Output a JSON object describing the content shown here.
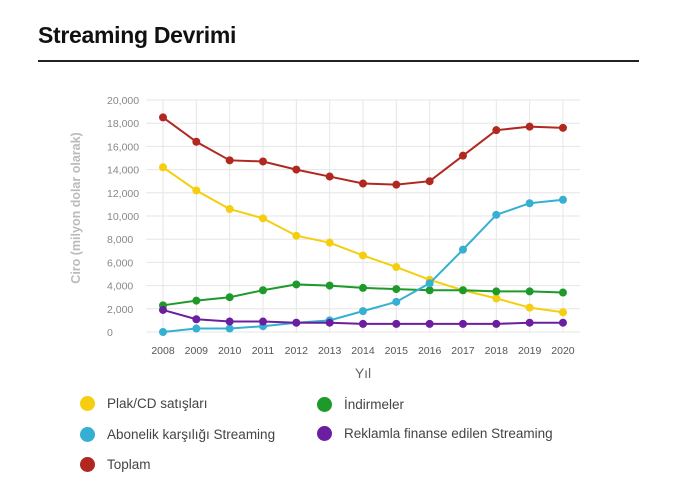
{
  "header": {
    "title": "Streaming Devrimi"
  },
  "chart_data": {
    "type": "line",
    "title": "Streaming Devrimi",
    "xlabel": "Yıl",
    "ylabel": "Ciro (milyon dolar olarak)",
    "ylim": [
      0,
      20000
    ],
    "yticks": [
      0,
      2000,
      4000,
      6000,
      8000,
      10000,
      12000,
      14000,
      16000,
      18000,
      20000
    ],
    "ytick_labels": [
      "0",
      "2,000",
      "4,000",
      "6,000",
      "8,000",
      "10,000",
      "12,000",
      "14,000",
      "16,000",
      "18,000",
      "20,000"
    ],
    "grid": true,
    "categories": [
      "2008",
      "2009",
      "2010",
      "2011",
      "2012",
      "2013",
      "2014",
      "2015",
      "2016",
      "2017",
      "2018",
      "2019",
      "2020"
    ],
    "series": [
      {
        "name": "Plak/CD satışları",
        "color": "#f5cf0f",
        "values": [
          14200,
          12200,
          10600,
          9800,
          8300,
          7700,
          6600,
          5600,
          4500,
          3600,
          2900,
          2100,
          1700
        ]
      },
      {
        "name": "İndirmeler",
        "color": "#1d9a2a",
        "values": [
          2300,
          2700,
          3000,
          3600,
          4100,
          4000,
          3800,
          3700,
          3600,
          3600,
          3500,
          3500,
          3400
        ]
      },
      {
        "name": "Abonelik karşılığı Streaming",
        "color": "#36b0d2",
        "values": [
          0,
          300,
          300,
          500,
          800,
          1000,
          1800,
          2600,
          4200,
          7100,
          10100,
          11100,
          11400
        ]
      },
      {
        "name": "Reklamla finanse edilen Streaming",
        "color": "#6b1fa0",
        "values": [
          1900,
          1100,
          900,
          900,
          800,
          800,
          700,
          700,
          700,
          700,
          700,
          800,
          800
        ]
      },
      {
        "name": "Toplam",
        "color": "#b02820",
        "values": [
          18500,
          16400,
          14800,
          14700,
          14000,
          13400,
          12800,
          12700,
          13000,
          15200,
          17400,
          17700,
          17600
        ]
      }
    ]
  },
  "legend": [
    {
      "label": "Plak/CD satışları",
      "color": "#f5cf0f"
    },
    {
      "label": "İndirmeler",
      "color": "#1d9a2a"
    },
    {
      "label": "Abonelik karşılığı Streaming",
      "color": "#36b0d2"
    },
    {
      "label": "Reklamla finanse edilen Streaming",
      "color": "#6b1fa0"
    },
    {
      "label": "Toplam",
      "color": "#b02820"
    }
  ]
}
